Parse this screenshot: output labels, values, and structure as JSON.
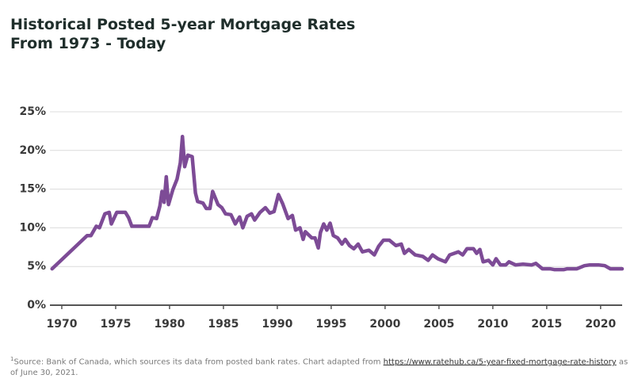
{
  "chart_data": {
    "type": "line",
    "title": [
      "Historical Posted 5-year Mortgage Rates",
      "From 1973 - Today"
    ],
    "color": "#7d4b96",
    "xlim": [
      1968.9,
      2022
    ],
    "xticks": [
      1970,
      1975,
      1980,
      1985,
      1990,
      1995,
      2000,
      2005,
      2010,
      2015,
      2020
    ],
    "ylim": [
      0,
      25
    ],
    "yticks": [
      {
        "value": 0,
        "label": "0%"
      },
      {
        "value": 5,
        "label": "5%"
      },
      {
        "value": 10,
        "label": "10%"
      },
      {
        "value": 15,
        "label": "15%"
      },
      {
        "value": 20,
        "label": "20%"
      },
      {
        "value": 25,
        "label": "25%"
      }
    ],
    "grid": true,
    "x": [
      1969.1,
      1972.35,
      1972.7,
      1973.2,
      1973.5,
      1974.0,
      1974.4,
      1974.6,
      1975.1,
      1975.9,
      1976.2,
      1976.5,
      1978.1,
      1978.4,
      1978.8,
      1979.1,
      1979.3,
      1979.5,
      1979.7,
      1979.9,
      1980.3,
      1980.7,
      1981.0,
      1981.2,
      1981.4,
      1981.7,
      1982.1,
      1982.4,
      1982.6,
      1983.1,
      1983.4,
      1983.75,
      1984.0,
      1984.5,
      1984.85,
      1985.2,
      1985.7,
      1986.1,
      1986.5,
      1986.8,
      1987.2,
      1987.6,
      1987.9,
      1988.4,
      1988.9,
      1989.3,
      1989.7,
      1990.1,
      1990.5,
      1991.0,
      1991.4,
      1991.7,
      1992.1,
      1992.4,
      1992.6,
      1993.2,
      1993.5,
      1993.8,
      1994.0,
      1994.3,
      1994.6,
      1994.9,
      1995.2,
      1995.6,
      1996.0,
      1996.3,
      1996.7,
      1997.1,
      1997.5,
      1997.9,
      1998.5,
      1999.0,
      1999.4,
      1999.85,
      2000.4,
      2001.0,
      2001.5,
      2001.8,
      2002.2,
      2002.8,
      2003.5,
      2004.0,
      2004.4,
      2004.9,
      2005.6,
      2006.0,
      2006.8,
      2007.2,
      2007.6,
      2008.2,
      2008.5,
      2008.8,
      2009.1,
      2009.6,
      2010.0,
      2010.3,
      2010.7,
      2011.2,
      2011.5,
      2012.1,
      2012.8,
      2013.6,
      2014.0,
      2014.6,
      2015.3,
      2015.7,
      2016.6,
      2016.9,
      2017.8,
      2018.5,
      2019.0,
      2019.8,
      2020.4,
      2020.9,
      2022.0
    ],
    "values": [
      4.7,
      9.0,
      9.0,
      10.2,
      10.0,
      11.8,
      12.0,
      10.5,
      12.0,
      12.0,
      11.3,
      10.2,
      10.2,
      11.3,
      11.2,
      12.8,
      14.7,
      13.3,
      16.6,
      13.0,
      14.9,
      16.3,
      18.4,
      21.8,
      17.9,
      19.4,
      19.2,
      14.5,
      13.4,
      13.2,
      12.5,
      12.5,
      14.7,
      13.0,
      12.6,
      11.8,
      11.7,
      10.5,
      11.4,
      10.0,
      11.5,
      11.8,
      11.0,
      12.0,
      12.6,
      11.9,
      12.1,
      14.3,
      13.1,
      11.2,
      11.6,
      9.7,
      10.0,
      8.5,
      9.5,
      8.7,
      8.7,
      7.4,
      9.4,
      10.5,
      9.7,
      10.6,
      9.0,
      8.7,
      7.9,
      8.5,
      7.7,
      7.3,
      7.9,
      6.9,
      7.1,
      6.5,
      7.6,
      8.4,
      8.4,
      7.7,
      7.9,
      6.7,
      7.2,
      6.5,
      6.3,
      5.8,
      6.5,
      6.0,
      5.6,
      6.5,
      6.9,
      6.5,
      7.3,
      7.3,
      6.7,
      7.2,
      5.6,
      5.8,
      5.2,
      6.0,
      5.2,
      5.2,
      5.6,
      5.2,
      5.3,
      5.2,
      5.4,
      4.7,
      4.7,
      4.6,
      4.6,
      4.7,
      4.7,
      5.1,
      5.2,
      5.2,
      5.1,
      4.7,
      4.7
    ]
  },
  "footnote": {
    "marker": "1",
    "text": "Source: Bank of Canada, which sources its data from posted bank rates. Chart adapted from",
    "link": "https://www.ratehub.ca/5-year-fixed-mortgage-rate-history",
    "suffix": "as of June 30, 2021."
  }
}
